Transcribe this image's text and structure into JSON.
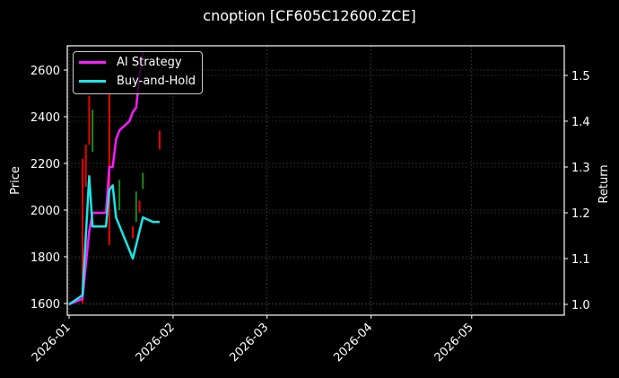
{
  "chart_data": {
    "type": "line",
    "title": "cnoption [CF605C12600.ZCE]",
    "xlabel": "",
    "ylabel": "Price",
    "ylabel_right": "Return",
    "x_ticks": [
      "2026-01",
      "2026-02",
      "2026-03",
      "2026-04",
      "2026-05"
    ],
    "y_ticks_left": [
      1600,
      1800,
      2000,
      2200,
      2400,
      2600
    ],
    "y_ticks_right": [
      1.0,
      1.1,
      1.2,
      1.3,
      1.4,
      1.5
    ],
    "ylim_left": [
      1550,
      2700
    ],
    "ylim_right": [
      0.975,
      1.56
    ],
    "grid": true,
    "legend_position": "upper left",
    "legend": [
      "AI Strategy",
      "Buy-and-Hold"
    ],
    "series": [
      {
        "name": "AI Strategy",
        "color": "#ff1aff",
        "axis": "right",
        "x": [
          "2026-01-01",
          "2026-01-05",
          "2026-01-07",
          "2026-01-08",
          "2026-01-12",
          "2026-01-13",
          "2026-01-14",
          "2026-01-15",
          "2026-01-16",
          "2026-01-19",
          "2026-01-20",
          "2026-01-21",
          "2026-01-22",
          "2026-01-23"
        ],
        "values": [
          1.0,
          1.012,
          1.16,
          1.2,
          1.2,
          1.3,
          1.3,
          1.36,
          1.38,
          1.4,
          1.42,
          1.43,
          1.5,
          1.55
        ]
      },
      {
        "name": "Buy-and-Hold",
        "color": "#1ae6e6",
        "axis": "right",
        "x": [
          "2026-01-01",
          "2026-01-05",
          "2026-01-07",
          "2026-01-08",
          "2026-01-12",
          "2026-01-13",
          "2026-01-14",
          "2026-01-15",
          "2026-01-20",
          "2026-01-23",
          "2026-01-26",
          "2026-01-28"
        ],
        "values": [
          1.0,
          1.02,
          1.28,
          1.17,
          1.17,
          1.25,
          1.26,
          1.19,
          1.1,
          1.19,
          1.18,
          1.18
        ]
      }
    ],
    "candles": [
      {
        "x": "2026-01-05",
        "low": 1600,
        "high": 2220,
        "color": "red"
      },
      {
        "x": "2026-01-06",
        "low": 2100,
        "high": 2280,
        "color": "red"
      },
      {
        "x": "2026-01-07",
        "low": 2280,
        "high": 2490,
        "color": "red"
      },
      {
        "x": "2026-01-08",
        "low": 2250,
        "high": 2430,
        "color": "green"
      },
      {
        "x": "2026-01-13",
        "low": 1850,
        "high": 2500,
        "color": "red"
      },
      {
        "x": "2026-01-16",
        "low": 2000,
        "high": 2130,
        "color": "green"
      },
      {
        "x": "2026-01-20",
        "low": 1880,
        "high": 1930,
        "color": "red"
      },
      {
        "x": "2026-01-21",
        "low": 1950,
        "high": 2080,
        "color": "green"
      },
      {
        "x": "2026-01-22",
        "low": 1990,
        "high": 2040,
        "color": "red"
      },
      {
        "x": "2026-01-23",
        "low": 2090,
        "high": 2160,
        "color": "green"
      },
      {
        "x": "2026-01-28",
        "low": 2260,
        "high": 2340,
        "color": "red"
      }
    ]
  }
}
